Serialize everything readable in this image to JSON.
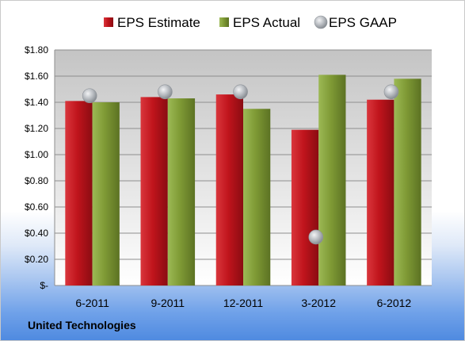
{
  "chart_data": {
    "type": "bar",
    "categories": [
      "6-2011",
      "9-2011",
      "12-2011",
      "3-2012",
      "6-2012"
    ],
    "series": [
      {
        "name": "EPS Estimate",
        "kind": "bar",
        "color": "#c0141c",
        "values": [
          1.41,
          1.44,
          1.46,
          1.19,
          1.42
        ]
      },
      {
        "name": "EPS Actual",
        "kind": "bar",
        "color": "#7f9a35",
        "values": [
          1.4,
          1.43,
          1.35,
          1.61,
          1.58
        ]
      },
      {
        "name": "EPS GAAP",
        "kind": "marker",
        "color": "#b5b9be",
        "values": [
          1.45,
          1.48,
          1.48,
          0.37,
          1.48
        ]
      }
    ],
    "ylim": [
      0,
      1.8
    ],
    "yticks": [
      0,
      0.2,
      0.4,
      0.6,
      0.8,
      1.0,
      1.2,
      1.4,
      1.6,
      1.8
    ],
    "ytick_labels": [
      "$-",
      "$0.20",
      "$0.40",
      "$0.60",
      "$0.80",
      "$1.00",
      "$1.20",
      "$1.40",
      "$1.60",
      "$1.80"
    ],
    "grid": true,
    "legend": "top"
  },
  "company": "United Technologies"
}
